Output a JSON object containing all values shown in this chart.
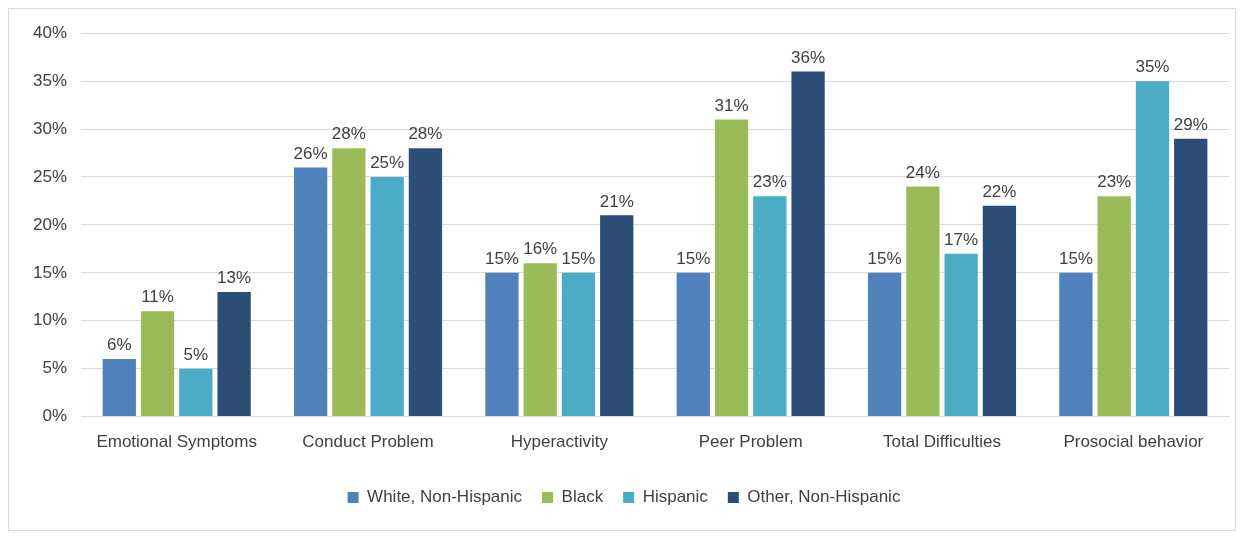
{
  "chart_data": {
    "type": "bar",
    "categories": [
      "Emotional Symptoms",
      "Conduct Problem",
      "Hyperactivity",
      "Peer Problem",
      "Total Difficulties",
      "Prosocial behavior"
    ],
    "series": [
      {
        "name": "White, Non-Hispanic",
        "color": "#4f81bd",
        "values": [
          6,
          26,
          15,
          15,
          15,
          15
        ],
        "value_labels": [
          "6%",
          "26%",
          "15%",
          "15%",
          "15%",
          "15%"
        ]
      },
      {
        "name": "Black",
        "color": "#9bbb59",
        "values": [
          11,
          28,
          16,
          31,
          24,
          23
        ],
        "value_labels": [
          "11%",
          "28%",
          "16%",
          "31%",
          "24%",
          "23%"
        ]
      },
      {
        "name": "Hispanic",
        "color": "#4bacc6",
        "values": [
          5,
          25,
          15,
          23,
          17,
          35
        ],
        "value_labels": [
          "5%",
          "25%",
          "15%",
          "23%",
          "17%",
          "35%"
        ]
      },
      {
        "name": "Other, Non-Hispanic",
        "color": "#2c4d75",
        "values": [
          13,
          28,
          21,
          36,
          22,
          29
        ],
        "value_labels": [
          "13%",
          "28%",
          "21%",
          "36%",
          "22%",
          "29%"
        ]
      }
    ],
    "ylim": [
      0,
      40
    ],
    "yticks": [
      {
        "value": 0,
        "label": "0%"
      },
      {
        "value": 5,
        "label": "5%"
      },
      {
        "value": 10,
        "label": "10%"
      },
      {
        "value": 15,
        "label": "15%"
      },
      {
        "value": 20,
        "label": "20%"
      },
      {
        "value": 25,
        "label": "25%"
      },
      {
        "value": 30,
        "label": "30%"
      },
      {
        "value": 35,
        "label": "35%"
      },
      {
        "value": 40,
        "label": "40%"
      }
    ],
    "grid": "y",
    "legend": "bottom"
  }
}
